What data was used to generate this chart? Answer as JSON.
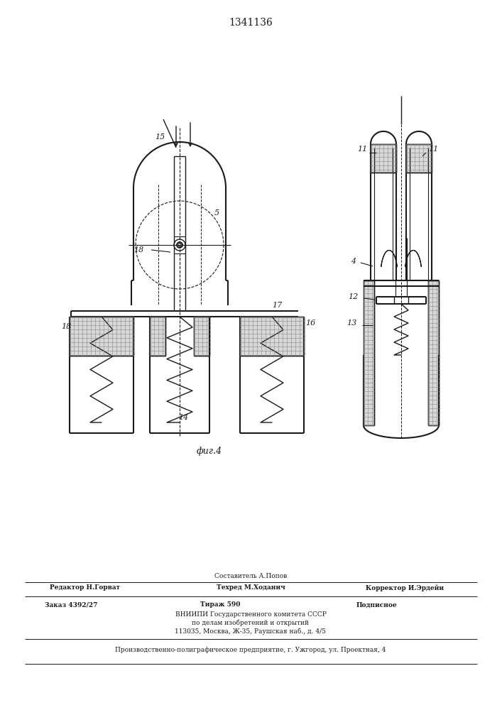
{
  "patent_number": "1341136",
  "fig_label": "фиг.4",
  "bg_color": "#ffffff",
  "line_color": "#1a1a1a",
  "footer_line0_center": "Составитель А.Попов",
  "footer_line1_left": "Редактор Н.Горват",
  "footer_line1_center": "Техред М.Ходанич",
  "footer_line1_right": "Корректор И.Эрдейи",
  "footer_line2_left": "Заказ 4392/27",
  "footer_line2_center": "Тираж 590",
  "footer_line2_right": "Подписное",
  "footer_line3": "ВНИИПИ Государственного комитета СССР",
  "footer_line4": "по делам изобретений и открытий",
  "footer_line5": "113035, Москва, Ж-35, Раушская наб., д. 4/5",
  "footer_line6": "Производственно-полиграфическое предприятие, г. Ужгород, ул. Проектная, 4"
}
